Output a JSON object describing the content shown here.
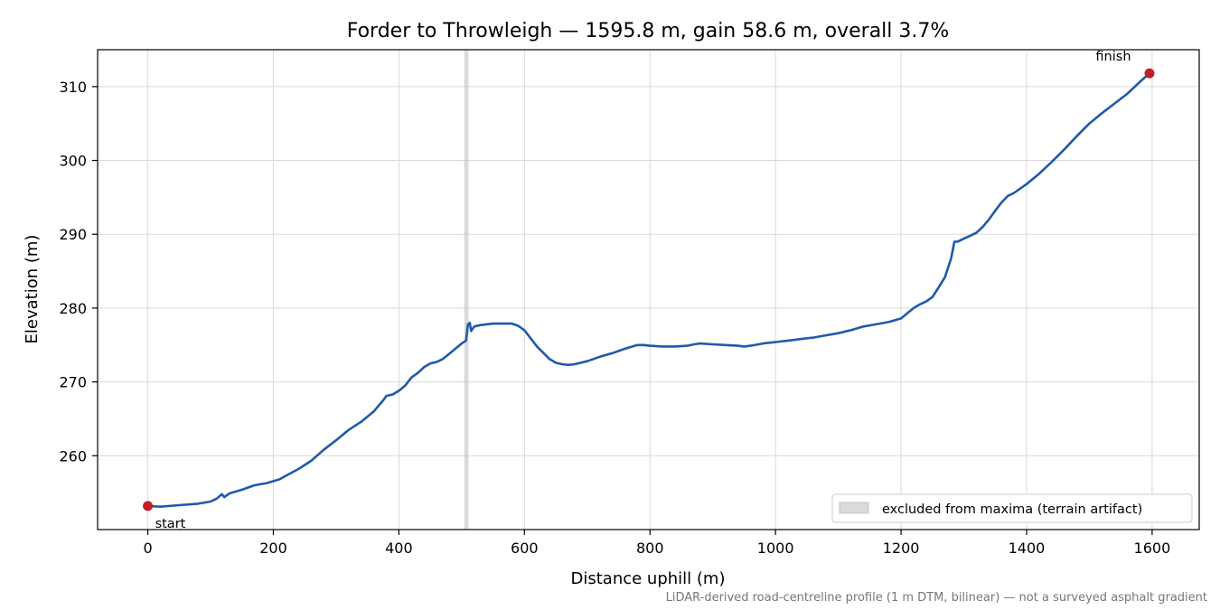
{
  "chart_data": {
    "type": "line",
    "title": "Forder to Throwleigh — 1595.8 m, gain 58.6 m, overall 3.7%",
    "xlabel": "Distance uphill (m)",
    "ylabel": "Elevation (m)",
    "xlim": [
      -80,
      1675
    ],
    "ylim": [
      250,
      315
    ],
    "xticks": [
      0,
      200,
      400,
      600,
      800,
      1000,
      1200,
      1400,
      1600
    ],
    "yticks": [
      260,
      270,
      280,
      290,
      300,
      310
    ],
    "grid": true,
    "line_color": "#1f5aa8",
    "marker_color": "#c0202a",
    "series": [
      {
        "x": [
          0,
          20,
          50,
          80,
          100,
          110,
          118,
          122,
          130,
          150,
          170,
          190,
          210,
          220,
          240,
          260,
          280,
          300,
          320,
          340,
          360,
          375,
          380,
          390,
          400,
          410,
          420,
          430,
          440,
          450,
          460,
          470,
          480,
          490,
          500,
          507,
          510,
          513,
          515,
          520,
          530,
          550,
          570,
          580,
          590,
          600,
          620,
          640,
          650,
          660,
          670,
          680,
          700,
          720,
          740,
          760,
          780,
          790,
          800,
          820,
          840,
          860,
          870,
          880,
          900,
          920,
          940,
          950,
          960,
          980,
          1000,
          1020,
          1040,
          1060,
          1080,
          1100,
          1120,
          1140,
          1160,
          1180,
          1200,
          1210,
          1220,
          1230,
          1240,
          1250,
          1260,
          1270,
          1280,
          1285,
          1290,
          1300,
          1310,
          1320,
          1330,
          1340,
          1350,
          1360,
          1370,
          1380,
          1400,
          1420,
          1440,
          1460,
          1480,
          1500,
          1520,
          1540,
          1560,
          1580,
          1595.8
        ],
        "y": [
          253.2,
          253.1,
          253.3,
          253.5,
          253.8,
          254.2,
          254.8,
          254.4,
          254.9,
          255.4,
          256.0,
          256.3,
          256.8,
          257.3,
          258.2,
          259.3,
          260.8,
          262.1,
          263.5,
          264.6,
          266.0,
          267.5,
          268.1,
          268.3,
          268.8,
          269.5,
          270.6,
          271.2,
          272.0,
          272.5,
          272.7,
          273.1,
          273.8,
          274.5,
          275.2,
          275.6,
          277.8,
          278.0,
          276.9,
          277.5,
          277.7,
          277.9,
          277.9,
          277.9,
          277.6,
          277.0,
          274.8,
          273.1,
          272.6,
          272.4,
          272.3,
          272.4,
          272.8,
          273.4,
          273.9,
          274.5,
          275.0,
          275.0,
          274.9,
          274.8,
          274.8,
          274.9,
          275.1,
          275.2,
          275.1,
          275.0,
          274.9,
          274.8,
          274.9,
          275.2,
          275.4,
          275.6,
          275.8,
          276.0,
          276.3,
          276.6,
          277.0,
          277.5,
          277.8,
          278.1,
          278.6,
          279.3,
          280.0,
          280.5,
          280.9,
          281.5,
          282.8,
          284.2,
          286.8,
          289.0,
          289.0,
          289.4,
          289.8,
          290.2,
          291.0,
          292.0,
          293.2,
          294.3,
          295.2,
          295.6,
          296.8,
          298.2,
          299.8,
          301.5,
          303.3,
          305.0,
          306.4,
          307.7,
          309.0,
          310.6,
          311.8
        ]
      }
    ],
    "annotations": [
      {
        "text": "start",
        "x": 0,
        "y": 253.2
      },
      {
        "text": "finish",
        "x": 1595.8,
        "y": 311.8
      }
    ],
    "excluded_band": {
      "x0": 504,
      "x1": 511,
      "label": "excluded from maxima (terrain artifact)"
    },
    "legend_location": "lower-right",
    "footnote": "LiDAR-derived road-centreline profile (1 m DTM, bilinear) — not a surveyed asphalt gradient"
  }
}
